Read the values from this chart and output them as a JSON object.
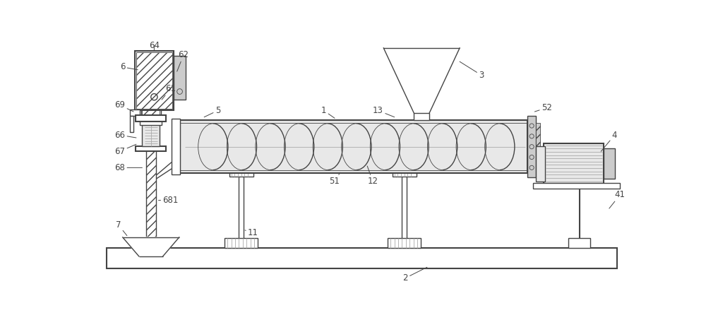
{
  "lc": "#444444",
  "lw": 1.0,
  "lw_thin": 0.6,
  "lw_thick": 1.5,
  "fs": 8.5,
  "bg": "white",
  "gray_light": "#e8e8e8",
  "gray_med": "#cccccc",
  "gray_dark": "#aaaaaa"
}
